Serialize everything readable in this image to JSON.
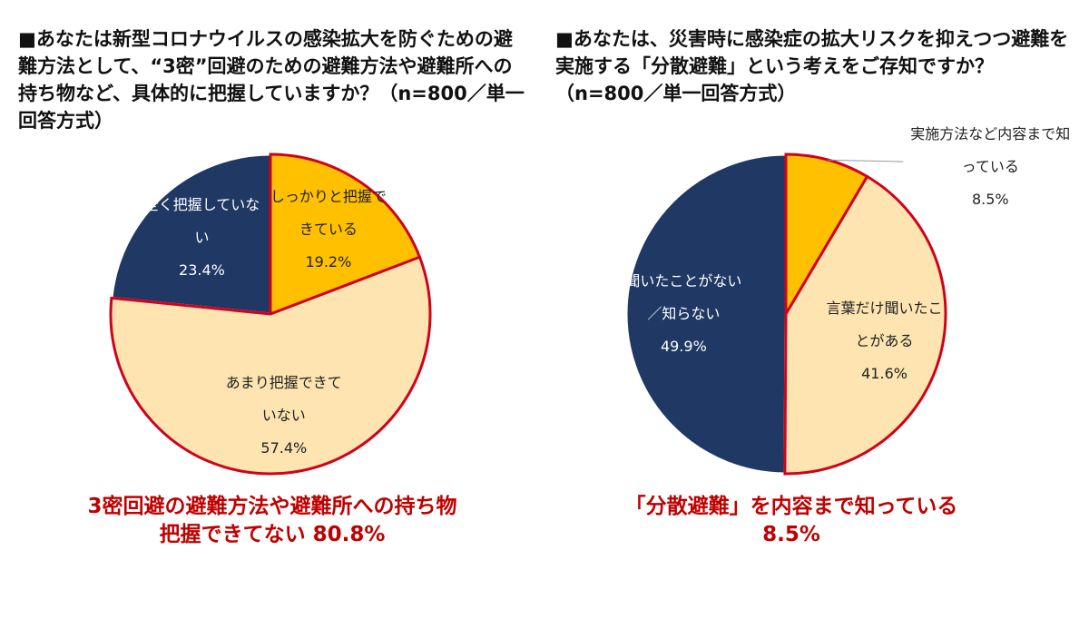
{
  "chart_data": [
    {
      "type": "pie",
      "title": "■あなたは新型コロナウイルスの感染拡大を防ぐための避難方法として、“3密”回避のための避難方法や避難所への持ち物など、具体的に把握していますか？（n=800／単一回答方式）",
      "categories": [
        "しっかりと把握できている",
        "あまり把握できていない",
        "全く把握していない"
      ],
      "values": [
        19.2,
        57.4,
        23.4
      ],
      "value_labels": [
        "19.2%",
        "57.4%",
        "23.4%"
      ],
      "colors": [
        "#ffc000",
        "#fde4b0",
        "#1f3864"
      ],
      "edge_colors": [
        "#d0021b",
        "#d0021b",
        "#ffffff"
      ],
      "annotations": [
        "3密回避の避難方法や避難所への持ち物",
        "把握できてない 80.8%"
      ]
    },
    {
      "type": "pie",
      "title": "■あなたは、災害時に感染症の拡大リスクを抑えつつ避難を実施する「分散避難」という考えをご存知ですか？（n=800／単一回答方式）",
      "categories": [
        "実施方法など内容まで知っている",
        "言葉だけ聞いたことがある",
        "聞いたことがない／知らない"
      ],
      "values": [
        8.5,
        41.6,
        49.9
      ],
      "value_labels": [
        "8.5%",
        "41.6%",
        "49.9%"
      ],
      "colors": [
        "#ffc000",
        "#fde4b0",
        "#1f3864"
      ],
      "edge_colors": [
        "#d0021b",
        "#d0021b",
        "#ffffff"
      ],
      "annotations": [
        "「分散避難」を内容まで知っている",
        "8.5%"
      ]
    }
  ]
}
